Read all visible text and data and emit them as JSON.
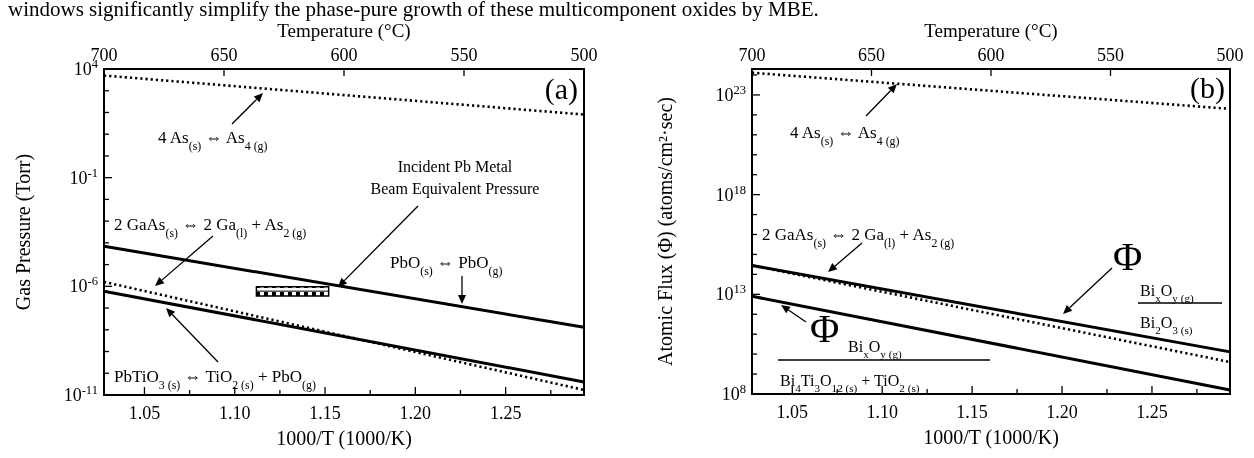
{
  "chart_data": [
    {
      "type": "line",
      "xlabel": "1000/T (1000/K)",
      "ylabel": "Gas Pressure (Torr)",
      "x2label": "Temperature (°C)",
      "log": "y",
      "xlim": [
        1.0276,
        1.2934
      ],
      "ylim": [
        1e-11,
        10000.0
      ],
      "xticks": [
        {
          "value": 1.05,
          "label": "1.05"
        },
        {
          "value": 1.075,
          "label": null
        },
        {
          "value": 1.1,
          "label": "1.10"
        },
        {
          "value": 1.125,
          "label": null
        },
        {
          "value": 1.15,
          "label": "1.15"
        },
        {
          "value": 1.175,
          "label": null
        },
        {
          "value": 1.2,
          "label": "1.20"
        },
        {
          "value": 1.225,
          "label": null
        },
        {
          "value": 1.25,
          "label": "1.25"
        },
        {
          "value": 1.275,
          "label": null
        }
      ],
      "x2lim": [
        700,
        500
      ],
      "x2ticks": [
        700,
        650,
        600,
        550,
        500
      ],
      "yticks": [
        {
          "value": 1e-11,
          "label": "10$^{-11}$"
        },
        {
          "value": 1e-10,
          "label": null
        },
        {
          "value": 1e-09,
          "label": null
        },
        {
          "value": 1e-08,
          "label": null
        },
        {
          "value": 1e-07,
          "label": null
        },
        {
          "value": 1e-06,
          "label": "10$^{-6}$"
        },
        {
          "value": 1e-05,
          "label": null
        },
        {
          "value": 0.0001,
          "label": null
        },
        {
          "value": 0.001,
          "label": null
        },
        {
          "value": 0.01,
          "label": null
        },
        {
          "value": 0.1,
          "label": "10$^{-1}$"
        },
        {
          "value": 1,
          "label": null
        },
        {
          "value": 10,
          "label": null
        },
        {
          "value": 100,
          "label": null
        },
        {
          "value": 1000,
          "label": null
        },
        {
          "value": 10000,
          "label": "10$^{4}$"
        }
      ],
      "series": [
        {
          "color": "#000000",
          "line_style": "dotted",
          "x": [
            1.0276,
            1.2934
          ],
          "values": [
            5000,
            80
          ]
        },
        {
          "color": "#000000",
          "line_style": "solid",
          "x": [
            1.0276,
            1.2934
          ],
          "values": [
            7e-05,
            1.3e-08
          ]
        },
        {
          "color": "#000000",
          "line_style": "dotted",
          "x": [
            1.0276,
            1.2934
          ],
          "values": [
            1.6e-06,
            1.7e-11
          ]
        },
        {
          "color": "#000000",
          "line_style": "solid",
          "x": [
            1.0276,
            1.2934
          ],
          "values": [
            6e-07,
            4e-11
          ]
        },
        {
          "type": "line",
          "color": "#000000",
          "x": [
            1.112,
            1.152
          ],
          "lower": [
            3.6e-07,
            3.6e-07
          ],
          "upper": [
            9.5e-07,
            9.5e-07
          ],
          "values": [
            6e-07,
            6e-07
          ]
        }
      ],
      "annotations": [
        "windows significantly simplify the phase-pure growth of these multicomponent oxides by MBE.",
        "(a)",
        "4 As$_{(s)}$ ⇔ As$_{4 (g)}$",
        "Incident Pb Metal\nBeam Equivalent Pressure",
        "2 GaAs$_{(s)}$ ⇔ 2 Ga$_{(l)}$ + As$_{2 (g)}$",
        "PbO$_{(s)}$ ⇔ PbO$_{(g)}$",
        "PbTiO$_{3 (s)}$ ⇔ TiO$_{2 (s)}$ + PbO$_{(g)}$"
      ]
    },
    {
      "type": "line",
      "xlabel": "1000/T (1000/K)",
      "ylabel": "Atomic Flux (Φ)  (atoms/cm²·sec)",
      "x2label": "Temperature (°C)",
      "log": "y",
      "xlim": [
        1.0276,
        1.2934
      ],
      "ylim": [
        100000000.0,
        2e+24
      ],
      "xticks": [
        {
          "value": 1.05,
          "label": "1.05"
        },
        {
          "value": 1.075,
          "label": null
        },
        {
          "value": 1.1,
          "label": "1.10"
        },
        {
          "value": 1.125,
          "label": null
        },
        {
          "value": 1.15,
          "label": "1.15"
        },
        {
          "value": 1.175,
          "label": null
        },
        {
          "value": 1.2,
          "label": "1.20"
        },
        {
          "value": 1.225,
          "label": null
        },
        {
          "value": 1.25,
          "label": "1.25"
        },
        {
          "value": 1.275,
          "label": null
        }
      ],
      "x2lim": [
        700,
        500
      ],
      "x2ticks": [
        700,
        650,
        600,
        550,
        500
      ],
      "yticks": [
        {
          "value": 100000000.0,
          "label": "10$^{8}$"
        },
        {
          "value": 1000000000.0,
          "label": null
        },
        {
          "value": 10000000000.0,
          "label": null
        },
        {
          "value": 100000000000.0,
          "label": null
        },
        {
          "value": 1000000000000.0,
          "label": null
        },
        {
          "value": 10000000000000.0,
          "label": "10$^{13}$"
        },
        {
          "value": 100000000000000.0,
          "label": null
        },
        {
          "value": 1000000000000000.0,
          "label": null
        },
        {
          "value": 1e+16,
          "label": null
        },
        {
          "value": 1e+17,
          "label": null
        },
        {
          "value": 1e+18,
          "label": "10$^{18}$"
        },
        {
          "value": 1e+19,
          "label": null
        },
        {
          "value": 1e+20,
          "label": null
        },
        {
          "value": 1e+21,
          "label": null
        },
        {
          "value": 1e+22,
          "label": null
        },
        {
          "value": 1e+23,
          "label": "10$^{23}$"
        },
        {
          "value": 1e+24,
          "label": null
        }
      ],
      "series": [
        {
          "color": "#000000",
          "line_style": "dotted",
          "x": [
            1.0276,
            1.2934
          ],
          "values": [
            1.3e+24,
            2e+22
          ]
        },
        {
          "color": "#000000",
          "line_style": "dotted",
          "x": [
            1.0276,
            1.2934
          ],
          "values": [
            280000000000000.0,
            4000000000.0
          ]
        },
        {
          "color": "#000000",
          "line_style": "solid",
          "x": [
            1.0276,
            1.2934
          ],
          "values": [
            280000000000000.0,
            13000000000.0
          ]
        },
        {
          "color": "#000000",
          "line_style": "solid",
          "x": [
            1.0276,
            1.2934
          ],
          "values": [
            8000000000000.0,
            160000000.0
          ]
        }
      ],
      "annotations": [
        "(b)",
        "4 As$_{(s)}$ ⇔ As$_{4 (g)}$",
        "2 GaAs$_{(s)}$ ⇔ 2 Ga$_{(l)}$ + As$_{2 (g)}$",
        "Φ",
        "Bi$_{x}$O$_{y (g)}$",
        "Bi$_{2}$O$_{3 (s)}$",
        "Φ",
        "Bi$_{x}$O$_{y (g)}$",
        "Bi$_{4}$Ti$_{3}$O$_{12 (s)}$ + TiO$_{2 (s)}$"
      ]
    }
  ]
}
